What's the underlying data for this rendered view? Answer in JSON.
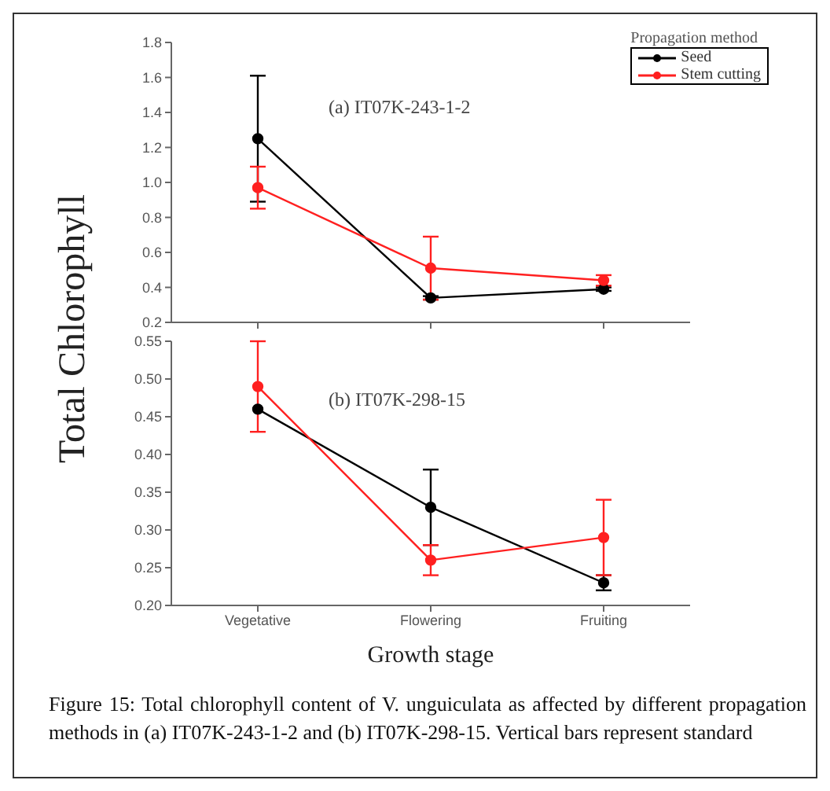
{
  "chart_data": [
    {
      "type": "line",
      "categories": [
        null,
        null,
        null
      ],
      "ylabel": "Total Chlorophyll",
      "legend_title": "Propagation method",
      "legend": "top right",
      "marker": "circle",
      "line_style": "solid",
      "ylim": [
        0.2,
        1.8
      ],
      "yticks": [
        0.2,
        0.4,
        0.6,
        0.8,
        {
          "value": 1,
          "label": "1.0"
        },
        1.2,
        1.4,
        1.6,
        1.8
      ],
      "annotations": [
        "(a) IT07K-243-1-2"
      ],
      "series": [
        {
          "name": "Seed",
          "color": "#000000",
          "values": [
            1.25,
            0.34,
            0.39
          ],
          "errors": [
            0.36,
            0.01,
            0.01
          ]
        },
        {
          "name": "Stem cutting",
          "color": "#ff2020",
          "values": [
            0.97,
            0.51,
            0.44
          ],
          "errors": [
            0.12,
            0.18,
            0.03
          ]
        }
      ]
    },
    {
      "type": "line",
      "categories": [
        "Vegetative",
        "Flowering",
        "Fruiting"
      ],
      "xlabel": "Growth stage",
      "legend": false,
      "marker": "circle",
      "line_style": "solid",
      "ylim": [
        0.2,
        0.55
      ],
      "yticks": [
        {
          "value": 0.2,
          "label": "0.20"
        },
        0.25,
        {
          "value": 0.3,
          "label": "0.30"
        },
        0.35,
        {
          "value": 0.4,
          "label": "0.40"
        },
        0.45,
        {
          "value": 0.5,
          "label": "0.50"
        },
        0.55
      ],
      "annotations": [
        "(b) IT07K-298-15",
        "Figure 15: Total chlorophyll content of V. unguiculata as affected by different propagation methods in (a) IT07K-243-1-2 and (b) IT07K-298-15. Vertical bars represent standard"
      ],
      "series": [
        {
          "color": "#000000",
          "values": [
            0.46,
            0.33,
            0.23
          ],
          "errors": [
            null,
            0.05,
            0.01
          ]
        },
        {
          "color": "#ff2020",
          "values": [
            0.49,
            0.26,
            0.29
          ],
          "errors": [
            0.06,
            0.02,
            0.05
          ]
        }
      ]
    }
  ]
}
